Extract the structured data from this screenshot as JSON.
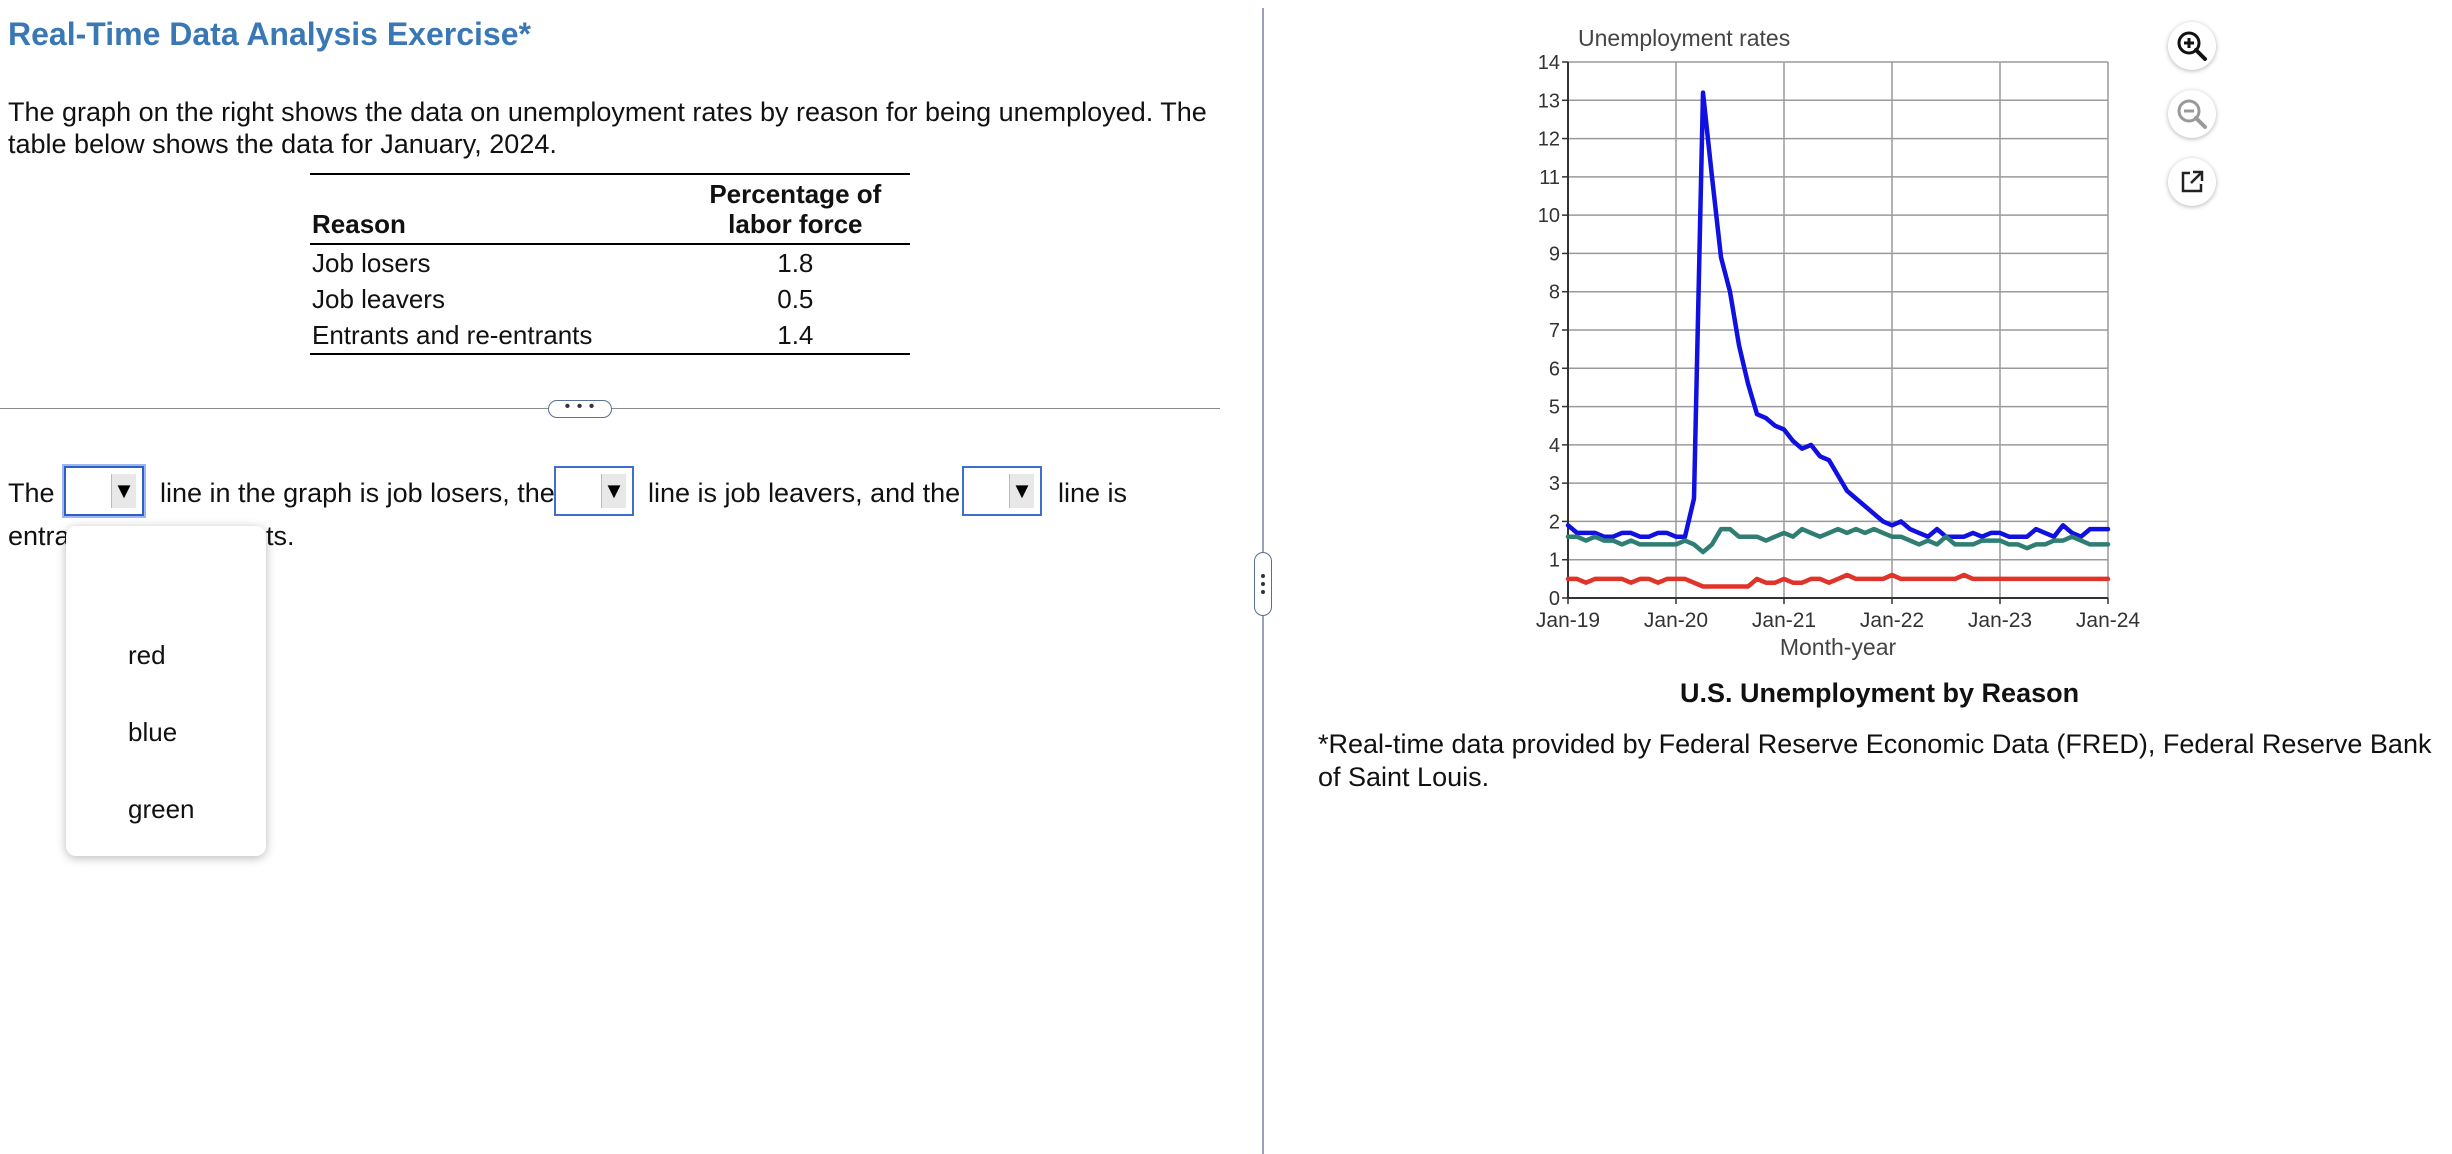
{
  "title": "Real-Time Data Analysis Exercise*",
  "intro": "The graph on the right shows the data on unemployment rates by reason for being unemployed. The table below shows the data for January, 2024.",
  "table": {
    "col1_header": "Reason",
    "col2_header_line1": "Percentage of",
    "col2_header_line2": "labor force",
    "rows": [
      {
        "reason": "Job losers",
        "value": "1.8"
      },
      {
        "reason": "Job leavers",
        "value": "0.5"
      },
      {
        "reason": "Entrants and re-entrants",
        "value": "1.4"
      }
    ]
  },
  "question": {
    "part1": "The",
    "part2": "line in the graph is job losers, the",
    "part3": "line is job leavers, and the",
    "part4": "line is",
    "line2_start": "entra",
    "line2_end": "ts.",
    "dropdown_arrow": "▼"
  },
  "dropdown_options": [
    "red",
    "blue",
    "green"
  ],
  "chart_caption": "U.S. Unemployment by Reason",
  "footnote": "*Real-time data provided by Federal Reserve Economic Data (FRED), Federal Reserve Bank of Saint Louis.",
  "icons": {
    "zoom_in": "zoom-in-icon",
    "zoom_out": "zoom-out-icon",
    "popout": "external-link-icon"
  },
  "colors": {
    "title": "#3a78b5",
    "job_losers": "#1010e0",
    "job_leavers": "#e0342a",
    "entrants": "#2f7d73",
    "dropdown_border": "#3d6fd0"
  },
  "chart_data": {
    "type": "line",
    "title": "Unemployment rates",
    "xlabel": "Month-year",
    "ylabel": "",
    "x_ticks": [
      "Jan-19",
      "Jan-20",
      "Jan-21",
      "Jan-22",
      "Jan-23",
      "Jan-24"
    ],
    "xlim": [
      "Jan-19",
      "Jan-24"
    ],
    "ylim": [
      0,
      14
    ],
    "y_ticks": [
      0,
      1,
      2,
      3,
      4,
      5,
      6,
      7,
      8,
      9,
      10,
      11,
      12,
      13,
      14
    ],
    "grid": true,
    "series": [
      {
        "color": "#1010e0",
        "x": [
          "Jan-19",
          "Feb-19",
          "Mar-19",
          "Apr-19",
          "May-19",
          "Jun-19",
          "Jul-19",
          "Aug-19",
          "Sep-19",
          "Oct-19",
          "Nov-19",
          "Dec-19",
          "Jan-20",
          "Feb-20",
          "Mar-20",
          "Apr-20",
          "May-20",
          "Jun-20",
          "Jul-20",
          "Aug-20",
          "Sep-20",
          "Oct-20",
          "Nov-20",
          "Dec-20",
          "Jan-21",
          "Feb-21",
          "Mar-21",
          "Apr-21",
          "May-21",
          "Jun-21",
          "Jul-21",
          "Aug-21",
          "Sep-21",
          "Oct-21",
          "Nov-21",
          "Dec-21",
          "Jan-22",
          "Feb-22",
          "Mar-22",
          "Apr-22",
          "May-22",
          "Jun-22",
          "Jul-22",
          "Aug-22",
          "Sep-22",
          "Oct-22",
          "Nov-22",
          "Dec-22",
          "Jan-23",
          "Feb-23",
          "Mar-23",
          "Apr-23",
          "May-23",
          "Jun-23",
          "Jul-23",
          "Aug-23",
          "Sep-23",
          "Oct-23",
          "Nov-23",
          "Dec-23",
          "Jan-24"
        ],
        "values": [
          1.9,
          1.7,
          1.7,
          1.7,
          1.6,
          1.6,
          1.7,
          1.7,
          1.6,
          1.6,
          1.7,
          1.7,
          1.6,
          1.6,
          2.6,
          13.2,
          11.0,
          8.9,
          8.0,
          6.6,
          5.6,
          4.8,
          4.7,
          4.5,
          4.4,
          4.1,
          3.9,
          4.0,
          3.7,
          3.6,
          3.2,
          2.8,
          2.6,
          2.4,
          2.2,
          2.0,
          1.9,
          2.0,
          1.8,
          1.7,
          1.6,
          1.8,
          1.6,
          1.6,
          1.6,
          1.7,
          1.6,
          1.7,
          1.7,
          1.6,
          1.6,
          1.6,
          1.8,
          1.7,
          1.6,
          1.9,
          1.7,
          1.6,
          1.8,
          1.8,
          1.8
        ]
      },
      {
        "color": "#2f7d73",
        "x": [
          "Jan-19",
          "Feb-19",
          "Mar-19",
          "Apr-19",
          "May-19",
          "Jun-19",
          "Jul-19",
          "Aug-19",
          "Sep-19",
          "Oct-19",
          "Nov-19",
          "Dec-19",
          "Jan-20",
          "Feb-20",
          "Mar-20",
          "Apr-20",
          "May-20",
          "Jun-20",
          "Jul-20",
          "Aug-20",
          "Sep-20",
          "Oct-20",
          "Nov-20",
          "Dec-20",
          "Jan-21",
          "Feb-21",
          "Mar-21",
          "Apr-21",
          "May-21",
          "Jun-21",
          "Jul-21",
          "Aug-21",
          "Sep-21",
          "Oct-21",
          "Nov-21",
          "Dec-21",
          "Jan-22",
          "Feb-22",
          "Mar-22",
          "Apr-22",
          "May-22",
          "Jun-22",
          "Jul-22",
          "Aug-22",
          "Sep-22",
          "Oct-22",
          "Nov-22",
          "Dec-22",
          "Jan-23",
          "Feb-23",
          "Mar-23",
          "Apr-23",
          "May-23",
          "Jun-23",
          "Jul-23",
          "Aug-23",
          "Sep-23",
          "Oct-23",
          "Nov-23",
          "Dec-23",
          "Jan-24"
        ],
        "values": [
          1.6,
          1.6,
          1.5,
          1.6,
          1.5,
          1.5,
          1.4,
          1.5,
          1.4,
          1.4,
          1.4,
          1.4,
          1.4,
          1.5,
          1.4,
          1.2,
          1.4,
          1.8,
          1.8,
          1.6,
          1.6,
          1.6,
          1.5,
          1.6,
          1.7,
          1.6,
          1.8,
          1.7,
          1.6,
          1.7,
          1.8,
          1.7,
          1.8,
          1.7,
          1.8,
          1.7,
          1.6,
          1.6,
          1.5,
          1.4,
          1.5,
          1.4,
          1.6,
          1.4,
          1.4,
          1.4,
          1.5,
          1.5,
          1.5,
          1.4,
          1.4,
          1.3,
          1.4,
          1.4,
          1.5,
          1.5,
          1.6,
          1.5,
          1.4,
          1.4,
          1.4
        ]
      },
      {
        "color": "#e0342a",
        "x": [
          "Jan-19",
          "Feb-19",
          "Mar-19",
          "Apr-19",
          "May-19",
          "Jun-19",
          "Jul-19",
          "Aug-19",
          "Sep-19",
          "Oct-19",
          "Nov-19",
          "Dec-19",
          "Jan-20",
          "Feb-20",
          "Mar-20",
          "Apr-20",
          "May-20",
          "Jun-20",
          "Jul-20",
          "Aug-20",
          "Sep-20",
          "Oct-20",
          "Nov-20",
          "Dec-20",
          "Jan-21",
          "Feb-21",
          "Mar-21",
          "Apr-21",
          "May-21",
          "Jun-21",
          "Jul-21",
          "Aug-21",
          "Sep-21",
          "Oct-21",
          "Nov-21",
          "Dec-21",
          "Jan-22",
          "Feb-22",
          "Mar-22",
          "Apr-22",
          "May-22",
          "Jun-22",
          "Jul-22",
          "Aug-22",
          "Sep-22",
          "Oct-22",
          "Nov-22",
          "Dec-22",
          "Jan-23",
          "Feb-23",
          "Mar-23",
          "Apr-23",
          "May-23",
          "Jun-23",
          "Jul-23",
          "Aug-23",
          "Sep-23",
          "Oct-23",
          "Nov-23",
          "Dec-23",
          "Jan-24"
        ],
        "values": [
          0.5,
          0.5,
          0.4,
          0.5,
          0.5,
          0.5,
          0.5,
          0.4,
          0.5,
          0.5,
          0.4,
          0.5,
          0.5,
          0.5,
          0.4,
          0.3,
          0.3,
          0.3,
          0.3,
          0.3,
          0.3,
          0.5,
          0.4,
          0.4,
          0.5,
          0.4,
          0.4,
          0.5,
          0.5,
          0.4,
          0.5,
          0.6,
          0.5,
          0.5,
          0.5,
          0.5,
          0.6,
          0.5,
          0.5,
          0.5,
          0.5,
          0.5,
          0.5,
          0.5,
          0.6,
          0.5,
          0.5,
          0.5,
          0.5,
          0.5,
          0.5,
          0.5,
          0.5,
          0.5,
          0.5,
          0.5,
          0.5,
          0.5,
          0.5,
          0.5,
          0.5
        ]
      }
    ]
  }
}
